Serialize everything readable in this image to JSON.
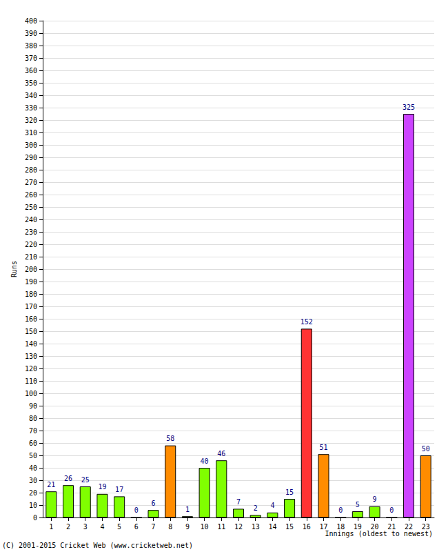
{
  "chart_data": {
    "type": "bar",
    "categories": [
      "1",
      "2",
      "3",
      "4",
      "5",
      "6",
      "7",
      "8",
      "9",
      "10",
      "11",
      "12",
      "13",
      "14",
      "15",
      "16",
      "17",
      "18",
      "19",
      "20",
      "21",
      "22",
      "23"
    ],
    "values": [
      21,
      26,
      25,
      19,
      17,
      0,
      6,
      58,
      1,
      40,
      46,
      7,
      2,
      4,
      15,
      152,
      51,
      0,
      5,
      9,
      0,
      325,
      50
    ],
    "colors": [
      "#80ff00",
      "#80ff00",
      "#80ff00",
      "#80ff00",
      "#80ff00",
      "#80ff00",
      "#80ff00",
      "#ff8c00",
      "#80ff00",
      "#80ff00",
      "#80ff00",
      "#80ff00",
      "#80ff00",
      "#80ff00",
      "#80ff00",
      "#ff3333",
      "#ff8c00",
      "#80ff00",
      "#80ff00",
      "#80ff00",
      "#80ff00",
      "#cc44ff",
      "#ff8c00"
    ],
    "y_label": "Runs",
    "x_label": "Innings (oldest to newest)",
    "annotations": [
      "(C) 2001-2015 Cricket Web (www.cricketweb.net)"
    ],
    "ylim": [
      0,
      400
    ],
    "yticks": [
      0,
      10,
      20,
      30,
      40,
      50,
      60,
      70,
      80,
      90,
      100,
      110,
      120,
      130,
      140,
      150,
      160,
      170,
      180,
      190,
      200,
      210,
      220,
      230,
      240,
      250,
      260,
      270,
      280,
      290,
      300,
      310,
      320,
      330,
      340,
      350,
      360,
      370,
      380,
      390,
      400
    ],
    "grid": true,
    "data_labels": true
  }
}
